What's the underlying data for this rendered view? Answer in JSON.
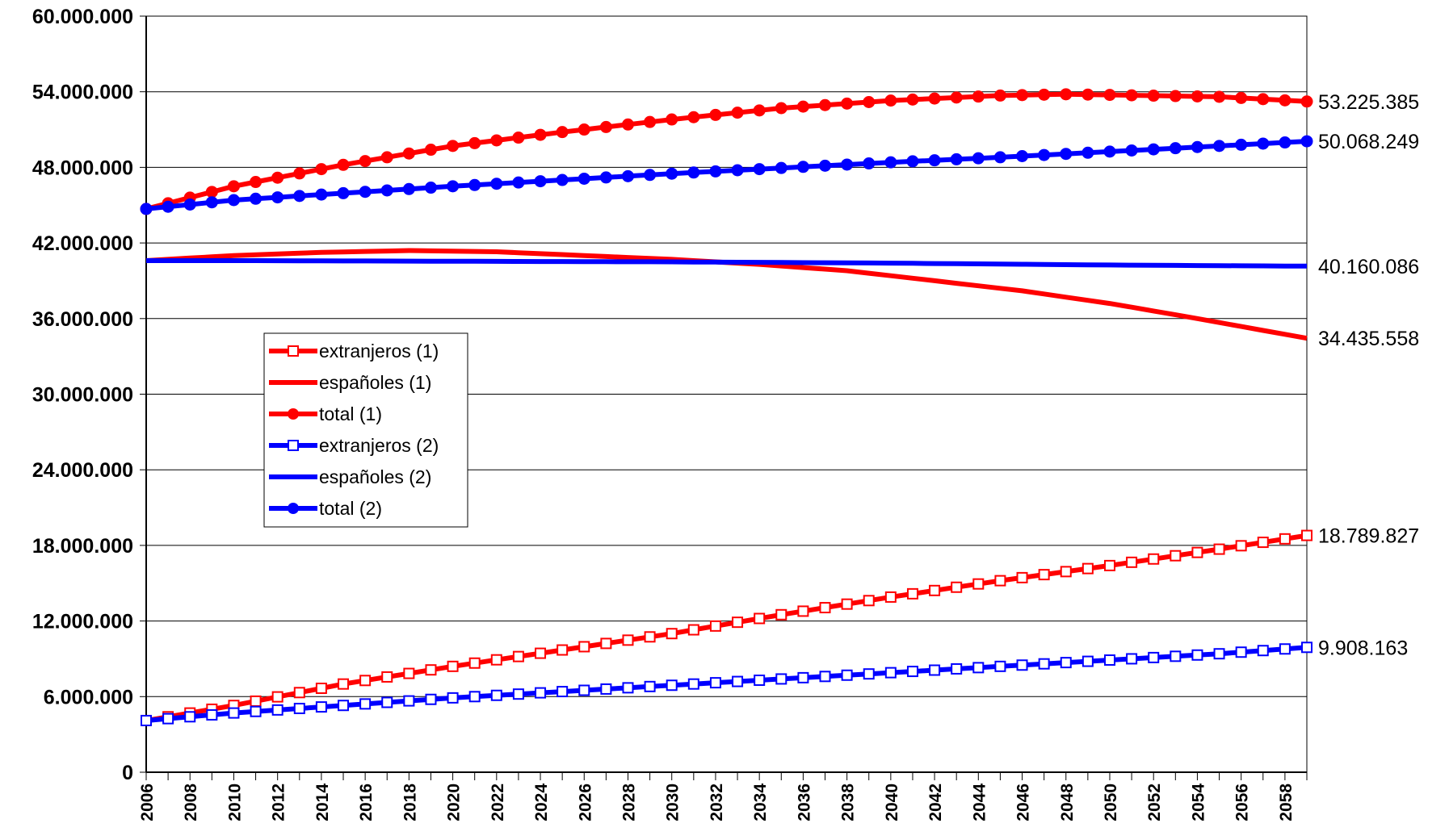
{
  "chart_data": {
    "type": "line",
    "title": "",
    "xlabel": "",
    "ylabel": "",
    "x": [
      2006,
      2007,
      2008,
      2009,
      2010,
      2011,
      2012,
      2013,
      2014,
      2015,
      2016,
      2017,
      2018,
      2019,
      2020,
      2021,
      2022,
      2023,
      2024,
      2025,
      2026,
      2027,
      2028,
      2029,
      2030,
      2031,
      2032,
      2033,
      2034,
      2035,
      2036,
      2037,
      2038,
      2039,
      2040,
      2041,
      2042,
      2043,
      2044,
      2045,
      2046,
      2047,
      2048,
      2049,
      2050,
      2051,
      2052,
      2053,
      2054,
      2055,
      2056,
      2057,
      2058,
      2059
    ],
    "xlim": [
      2006,
      2059
    ],
    "ylim": [
      0,
      60000000
    ],
    "y_ticks": [
      "0",
      "6.000.000",
      "12.000.000",
      "18.000.000",
      "24.000.000",
      "30.000.000",
      "36.000.000",
      "42.000.000",
      "48.000.000",
      "54.000.000",
      "60.000.000"
    ],
    "x_ticks": [
      "2006",
      "2008",
      "2010",
      "2012",
      "2014",
      "2016",
      "2018",
      "2020",
      "2022",
      "2024",
      "2026",
      "2028",
      "2030",
      "2032",
      "2034",
      "2036",
      "2038",
      "2040",
      "2042",
      "2044",
      "2046",
      "2048",
      "2050",
      "2052",
      "2054",
      "2056",
      "2058"
    ],
    "grid": "horizontal",
    "legend_position": "center-left",
    "series": [
      {
        "name": "extranjeros (1)",
        "color": "#ff0000",
        "marker": "open-square",
        "anchors": [
          [
            2006,
            4100000
          ],
          [
            2010,
            5300000
          ],
          [
            2015,
            7000000
          ],
          [
            2020,
            8400000
          ],
          [
            2025,
            9700000
          ],
          [
            2030,
            11000000
          ],
          [
            2035,
            12500000
          ],
          [
            2040,
            13900000
          ],
          [
            2045,
            15200000
          ],
          [
            2050,
            16400000
          ],
          [
            2055,
            17700000
          ],
          [
            2059,
            18789827
          ]
        ],
        "end_label": "18.789.827"
      },
      {
        "name": "españoles (1)",
        "color": "#ff0000",
        "marker": "none",
        "anchors": [
          [
            2006,
            40600000
          ],
          [
            2010,
            41000000
          ],
          [
            2014,
            41250000
          ],
          [
            2018,
            41400000
          ],
          [
            2022,
            41300000
          ],
          [
            2026,
            41000000
          ],
          [
            2030,
            40700000
          ],
          [
            2034,
            40300000
          ],
          [
            2038,
            39800000
          ],
          [
            2042,
            39000000
          ],
          [
            2046,
            38200000
          ],
          [
            2050,
            37200000
          ],
          [
            2054,
            36000000
          ],
          [
            2059,
            34435558
          ]
        ],
        "end_label": "34.435.558"
      },
      {
        "name": "total (1)",
        "color": "#ff0000",
        "marker": "filled-circle",
        "anchors": [
          [
            2006,
            44700000
          ],
          [
            2010,
            46500000
          ],
          [
            2015,
            48200000
          ],
          [
            2020,
            49700000
          ],
          [
            2025,
            50800000
          ],
          [
            2030,
            51800000
          ],
          [
            2035,
            52700000
          ],
          [
            2040,
            53300000
          ],
          [
            2045,
            53700000
          ],
          [
            2048,
            53800000
          ],
          [
            2050,
            53750000
          ],
          [
            2055,
            53600000
          ],
          [
            2059,
            53225385
          ]
        ],
        "end_label": "53.225.385"
      },
      {
        "name": "extranjeros (2)",
        "color": "#0000ff",
        "marker": "open-square",
        "anchors": [
          [
            2006,
            4100000
          ],
          [
            2010,
            4700000
          ],
          [
            2015,
            5300000
          ],
          [
            2020,
            5900000
          ],
          [
            2025,
            6400000
          ],
          [
            2030,
            6900000
          ],
          [
            2035,
            7400000
          ],
          [
            2040,
            7900000
          ],
          [
            2045,
            8400000
          ],
          [
            2050,
            8900000
          ],
          [
            2055,
            9400000
          ],
          [
            2059,
            9908163
          ]
        ],
        "end_label": "9.908.163"
      },
      {
        "name": "españoles (2)",
        "color": "#0000ff",
        "marker": "none",
        "anchors": [
          [
            2006,
            40600000
          ],
          [
            2010,
            40600000
          ],
          [
            2020,
            40550000
          ],
          [
            2030,
            40500000
          ],
          [
            2040,
            40400000
          ],
          [
            2050,
            40250000
          ],
          [
            2059,
            40160086
          ]
        ],
        "end_label": "40.160.086"
      },
      {
        "name": "total (2)",
        "color": "#0000ff",
        "marker": "filled-circle",
        "anchors": [
          [
            2006,
            44700000
          ],
          [
            2010,
            45400000
          ],
          [
            2015,
            45950000
          ],
          [
            2020,
            46500000
          ],
          [
            2025,
            47000000
          ],
          [
            2030,
            47500000
          ],
          [
            2035,
            47950000
          ],
          [
            2040,
            48400000
          ],
          [
            2045,
            48800000
          ],
          [
            2050,
            49250000
          ],
          [
            2055,
            49700000
          ],
          [
            2059,
            50068249
          ]
        ],
        "end_label": "50.068.249"
      }
    ]
  }
}
